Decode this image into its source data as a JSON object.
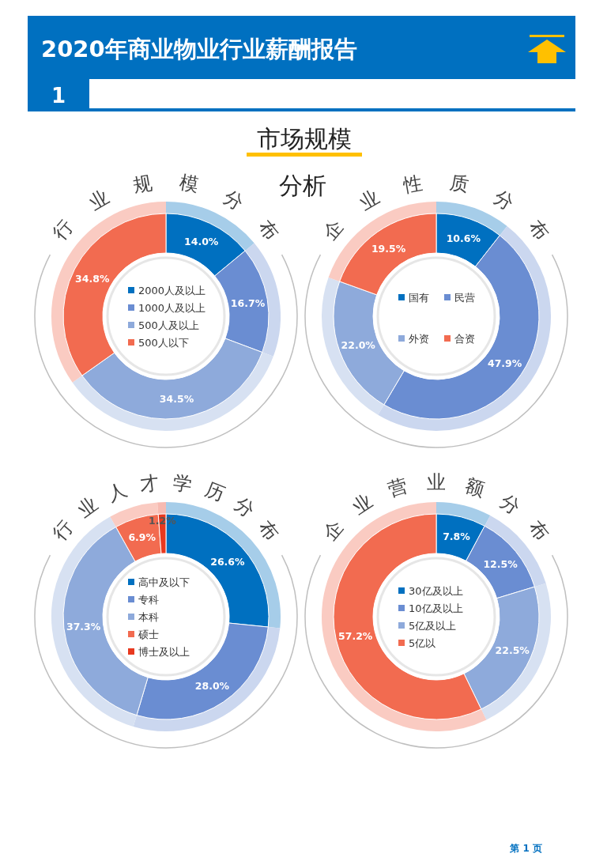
{
  "chart_data": [
    {
      "type": "other",
      "title": "2020年商业物业行业薪酬报告",
      "annotations": [
        "1",
        "市场规模",
        "分析",
        "第 1 页"
      ]
    },
    {
      "type": "donut",
      "title": "行业规模分布",
      "categories": [
        "2000人及以上",
        "1000人及以上",
        "500人及以上",
        "500人以下"
      ],
      "values": [
        14.0,
        16.7,
        34.5,
        34.8
      ],
      "value_labels": [
        "14.0%",
        "16.7%",
        "34.5%",
        "34.8%"
      ],
      "colors": [
        "#0070c0",
        "#6a8dd2",
        "#8eaadb",
        "#f26b50"
      ],
      "legend": "center"
    },
    {
      "type": "donut",
      "title": "企业性质分布",
      "categories": [
        "国有",
        "民营",
        "外资",
        "合资"
      ],
      "values": [
        10.6,
        47.9,
        22.0,
        19.5
      ],
      "value_labels": [
        "10.6%",
        "47.9%",
        "22.0%",
        "19.5%"
      ],
      "colors": [
        "#0070c0",
        "#6a8dd2",
        "#8eaadb",
        "#f26b50"
      ],
      "legend": "center"
    },
    {
      "type": "donut",
      "title": "行业人才学历分布",
      "categories": [
        "高中及以下",
        "专科",
        "本科",
        "硕士",
        "博士及以上"
      ],
      "values": [
        26.6,
        28.0,
        37.3,
        6.9,
        1.2
      ],
      "value_labels": [
        "26.6%",
        "28.0%",
        "37.3%",
        "6.9%",
        "1.2%"
      ],
      "colors": [
        "#0070c0",
        "#6a8dd2",
        "#8eaadb",
        "#f26b50",
        "#e8391f"
      ],
      "legend": "center"
    },
    {
      "type": "donut",
      "title": "企业营业额分布",
      "categories": [
        "30亿及以上",
        "10亿及以上",
        "5亿及以上",
        "5亿以"
      ],
      "values": [
        7.8,
        12.5,
        22.5,
        57.2
      ],
      "value_labels": [
        "7.8%",
        "12.5%",
        "22.5%",
        "57.2%"
      ],
      "colors": [
        "#0070c0",
        "#6a8dd2",
        "#8eaadb",
        "#f26b50"
      ],
      "legend": "center"
    }
  ]
}
